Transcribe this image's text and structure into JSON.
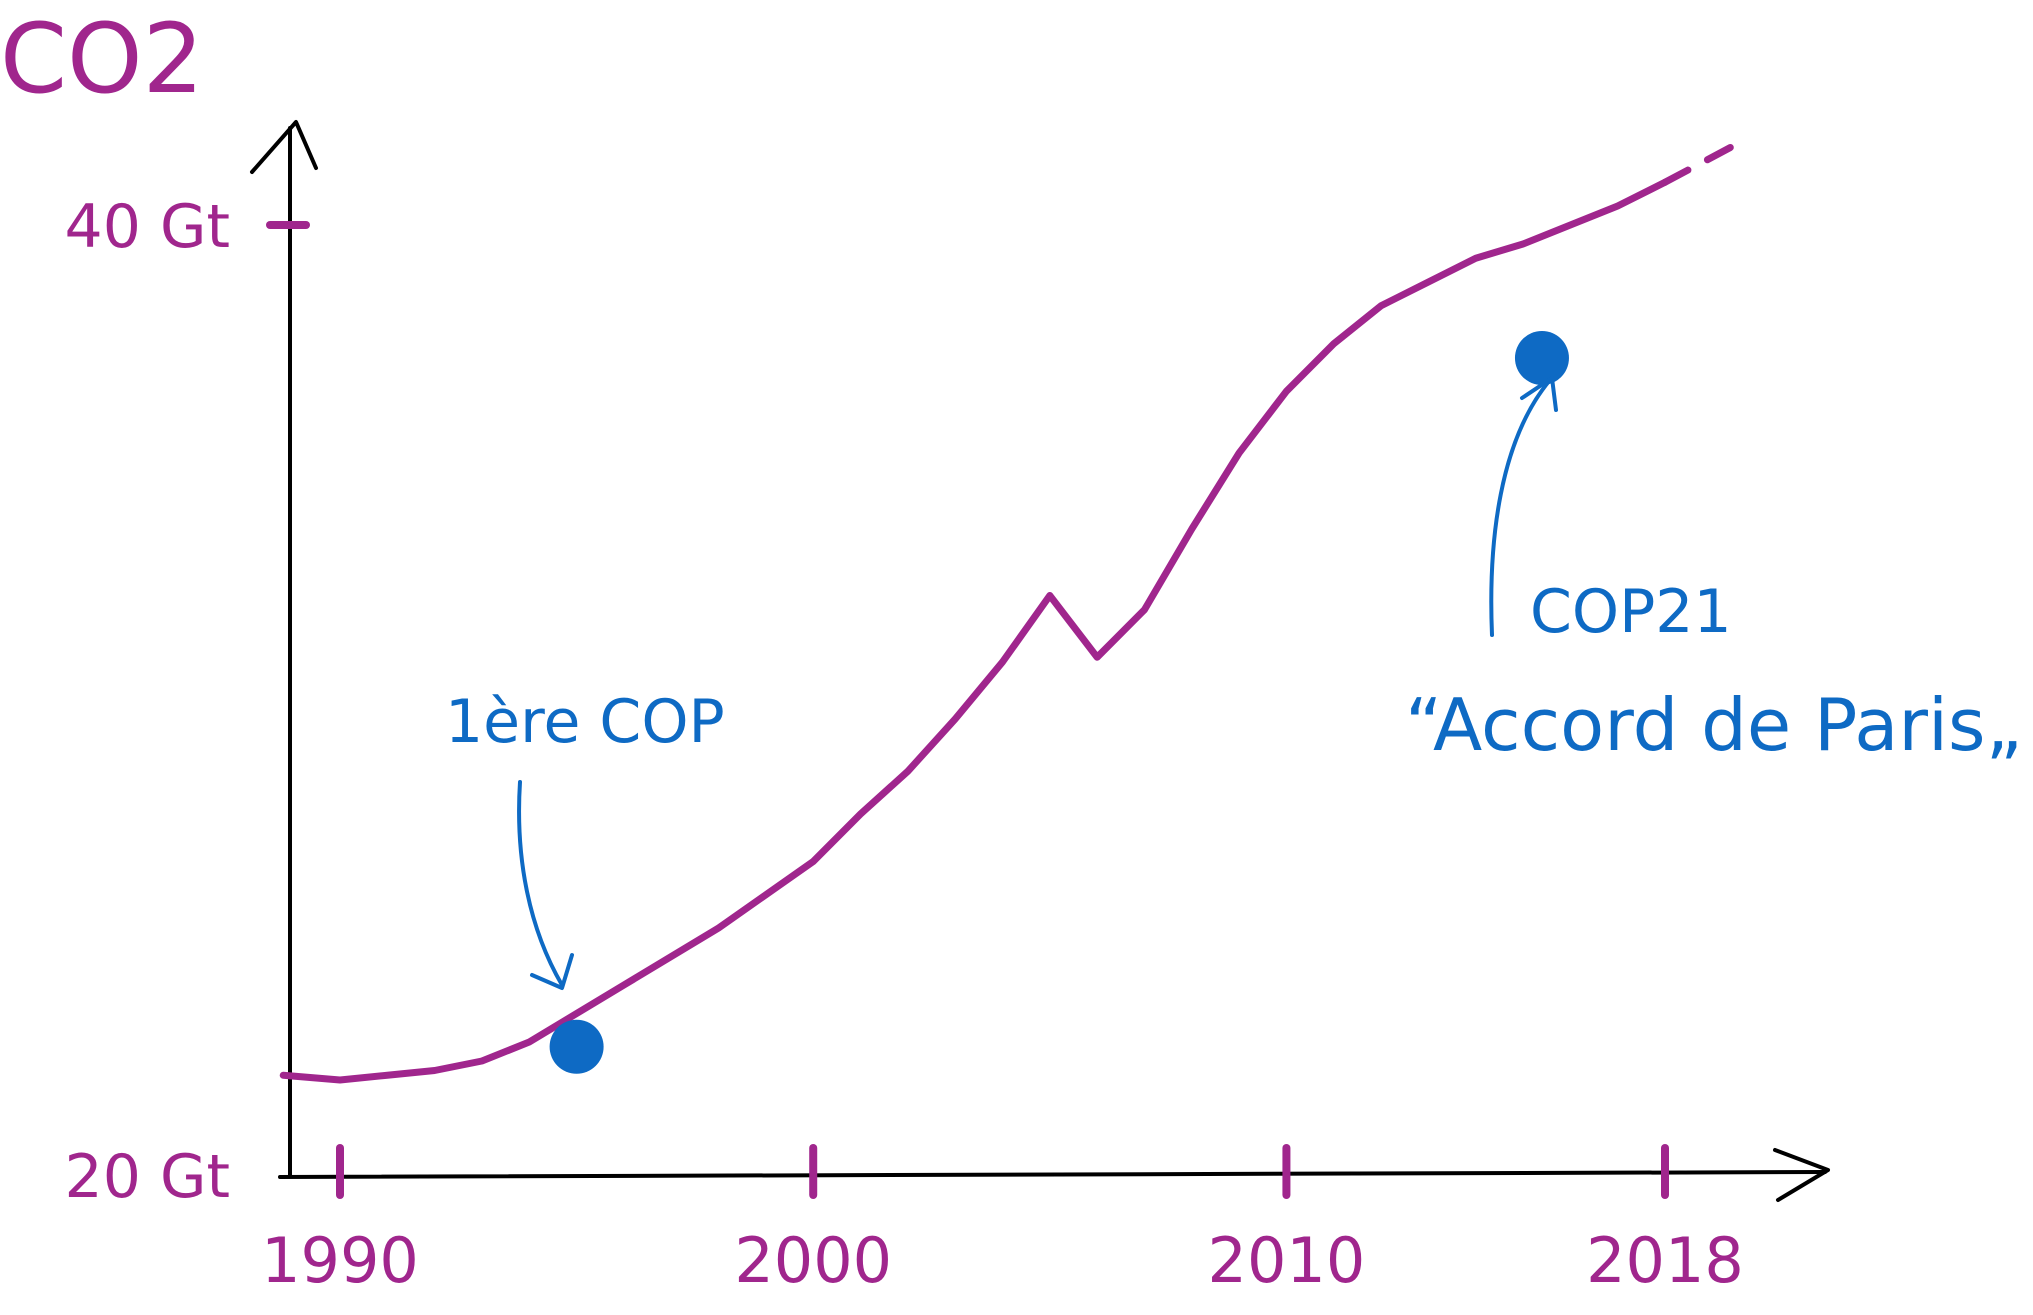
{
  "colors": {
    "line": "#a0268d",
    "label": "#a0268d",
    "annotation": "#0e6ac4",
    "axis": "#000000"
  },
  "chart_data": {
    "type": "line",
    "title": "CO2",
    "ylabel": "",
    "xlabel": "",
    "xlim": [
      1988.7,
      2020
    ],
    "ylim": [
      20,
      40
    ],
    "x_ticks": [
      {
        "value": 1990,
        "label": "1990"
      },
      {
        "value": 2000,
        "label": "2000"
      },
      {
        "value": 2010,
        "label": "2010"
      },
      {
        "value": 2018,
        "label": "2018"
      }
    ],
    "y_ticks": [
      {
        "value": 20,
        "label": "20 Gt"
      },
      {
        "value": 40,
        "label": "40 Gt"
      }
    ],
    "series": [
      {
        "x": [
          1988.8,
          1990,
          1991,
          1992,
          1993,
          1994,
          1995,
          1996,
          1997,
          1998,
          1999,
          2000,
          2001,
          2002,
          2003,
          2004,
          2005,
          2006,
          2007,
          2008,
          2009,
          2010,
          2011,
          2012,
          2013,
          2014,
          2015,
          2016,
          2017,
          2018
        ],
        "y": [
          22.1,
          22.0,
          22.1,
          22.2,
          22.4,
          22.8,
          23.4,
          24.0,
          24.6,
          25.2,
          25.9,
          26.6,
          27.6,
          28.5,
          29.6,
          30.8,
          32.2,
          30.9,
          31.9,
          33.6,
          35.2,
          36.5,
          37.5,
          38.3,
          38.8,
          39.3,
          39.6,
          40.0,
          40.4,
          40.9
        ],
        "projection_x": [
          2018,
          2019.7
        ],
        "projection_y": [
          40.9,
          41.8
        ]
      }
    ],
    "annotations": [
      {
        "x": 1995,
        "y": 22.7,
        "label": "1ère COP"
      },
      {
        "x": 2015.4,
        "y": 37.2,
        "label": "COP21",
        "sublabel": "“Accord de Paris„"
      }
    ]
  }
}
